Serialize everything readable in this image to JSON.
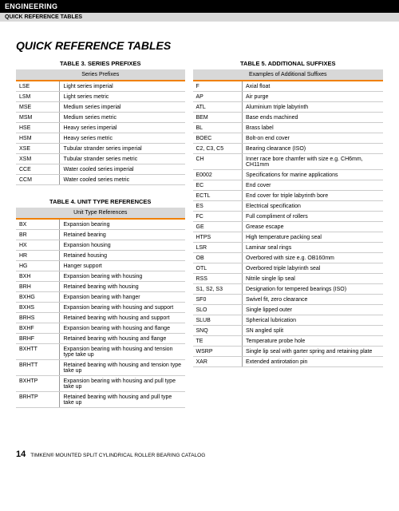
{
  "header": {
    "section": "ENGINEERING",
    "sub": "QUICK REFERENCE TABLES"
  },
  "title": "QUICK REFERENCE TABLES",
  "t3": {
    "title": "TABLE 3. SERIES PREFIXES",
    "head": "Series Prefixes",
    "rows": [
      [
        "LSE",
        "Light series imperial"
      ],
      [
        "LSM",
        "Light series metric"
      ],
      [
        "MSE",
        "Medium series imperial"
      ],
      [
        "MSM",
        "Medium series metric"
      ],
      [
        "HSE",
        "Heavy series imperial"
      ],
      [
        "HSM",
        "Heavy series metric"
      ],
      [
        "XSE",
        "Tubular strander series imperial"
      ],
      [
        "XSM",
        "Tubular strander series metric"
      ],
      [
        "CCE",
        "Water cooled series imperial"
      ],
      [
        "CCM",
        "Water cooled series metric"
      ]
    ]
  },
  "t4": {
    "title": "TABLE 4. UNIT TYPE REFERENCES",
    "head": "Unit Type References",
    "rows": [
      [
        "BX",
        "Expansion bearing"
      ],
      [
        "BR",
        "Retained bearing"
      ],
      [
        "HX",
        "Expansion housing"
      ],
      [
        "HR",
        "Retained housing"
      ],
      [
        "HG",
        "Hanger support"
      ],
      [
        "BXH",
        "Expansion bearing with housing"
      ],
      [
        "BRH",
        "Retained bearing with housing"
      ],
      [
        "BXHG",
        "Expansion bearing with hanger"
      ],
      [
        "BXHS",
        "Expansion bearing with housing and support"
      ],
      [
        "BRHS",
        "Retained bearing with housing and support"
      ],
      [
        "BXHF",
        "Expansion bearing with housing and flange"
      ],
      [
        "BRHF",
        "Retained bearing with housing and flange"
      ],
      [
        "BXHTT",
        "Expansion bearing with housing and tension type take up"
      ],
      [
        "BRHTT",
        "Retained bearing with housing and tension type take up"
      ],
      [
        "BXHTP",
        "Expansion bearing with housing and pull type take up"
      ],
      [
        "BRHTP",
        "Retained bearing with housing and pull type take up"
      ]
    ]
  },
  "t5": {
    "title": "TABLE 5. ADDITIONAL SUFFIXES",
    "head": "Examples of Additional Suffixes",
    "rows": [
      [
        "F",
        "Axial float"
      ],
      [
        "AP",
        "Air purge"
      ],
      [
        "ATL",
        "Aluminium triple labyrinth"
      ],
      [
        "BEM",
        "Base ends machined"
      ],
      [
        "BL",
        "Brass label"
      ],
      [
        "BOEC",
        "Bolt-on end cover"
      ],
      [
        "C2, C3, C5",
        "Bearing clearance (ISO)"
      ],
      [
        "CH",
        "Inner race bore chamfer with size e.g. CH6mm, CH11mm"
      ],
      [
        "E0002",
        "Specifications for marine applications"
      ],
      [
        "EC",
        "End cover"
      ],
      [
        "ECTL",
        "End cover for triple labyrinth bore"
      ],
      [
        "ES",
        "Electrical specification"
      ],
      [
        "FC",
        "Full compliment of rollers"
      ],
      [
        "GE",
        "Grease escape"
      ],
      [
        "HTPS",
        "High temperature packing seal"
      ],
      [
        "LSR",
        "Laminar seal rings"
      ],
      [
        "OB",
        "Overbored with size e.g. OB160mm"
      ],
      [
        "OTL",
        "Overbored triple labyrinth seal"
      ],
      [
        "RSS",
        "Nitrile single lip seal"
      ],
      [
        "S1, S2, S3",
        "Designation for tempered bearings (ISO)"
      ],
      [
        "SF0",
        "Swivel fit, zero clearance"
      ],
      [
        "SLO",
        "Single lipped outer"
      ],
      [
        "SLUB",
        "Spherical lubrication"
      ],
      [
        "SNQ",
        "SN angled split"
      ],
      [
        "TE",
        "Temperature probe hole"
      ],
      [
        "WSRP",
        "Single lip seal with garter spring and retaining plate"
      ],
      [
        "XAR",
        "Extended antirotation pin"
      ]
    ]
  },
  "footer": {
    "page": "14",
    "text": "TIMKEN® MOUNTED SPLIT CYLINDRICAL ROLLER BEARING CATALOG"
  }
}
